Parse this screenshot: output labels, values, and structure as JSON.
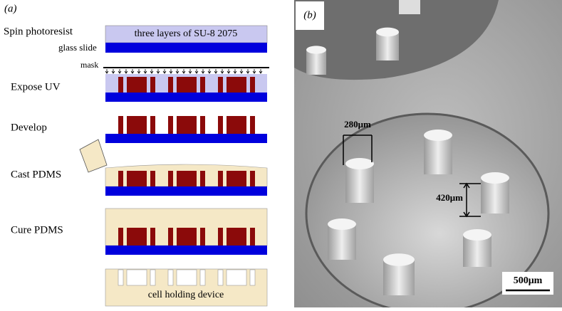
{
  "panel_a": {
    "label": "(a)",
    "steps": [
      "Spin photoresist",
      "Expose UV",
      "Develop",
      "Cast PDMS",
      "Cure PDMS"
    ],
    "layer_text": "three layers of SU-8 2075",
    "substrate_label": "glass slide",
    "mask_label": "mask",
    "device_text": "cell holding device"
  },
  "panel_b": {
    "label": "(b)",
    "width_label": "280μm",
    "height_label": "420μm",
    "scale_label": "500μm"
  }
}
